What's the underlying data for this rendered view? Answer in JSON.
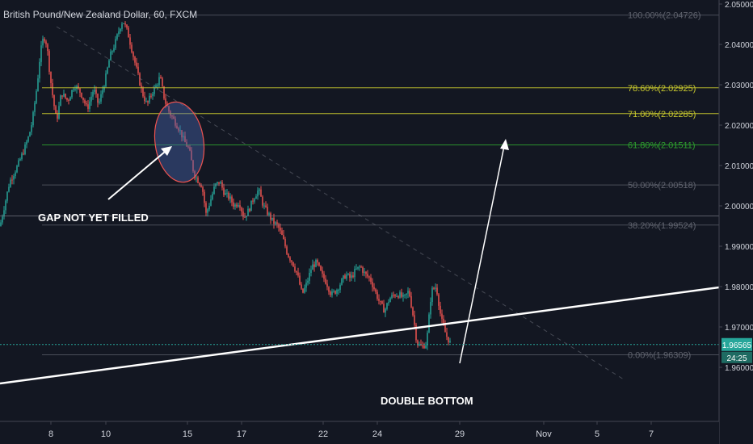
{
  "title": "British Pound/New Zealand Dollar, 60, FXCM",
  "colors": {
    "background": "#131722",
    "up": "#26a69a",
    "down": "#ef5350",
    "axis_text": "#d1d4dc",
    "fib_grey": "#787b86",
    "fib_yellow": "#c9c92e",
    "fib_green": "#2ea02e",
    "current_price": "#26a69a"
  },
  "chart_data": {
    "type": "candlestick",
    "price_axis": {
      "ylim": [
        1.959,
        2.0515
      ],
      "ticks": [
        "2.05000",
        "2.04000",
        "2.03000",
        "2.02000",
        "2.01000",
        "2.00000",
        "1.99000",
        "1.98000",
        "1.97000",
        "1.96000"
      ]
    },
    "time_axis": {
      "ticks": [
        "8",
        "10",
        "15",
        "17",
        "22",
        "24",
        "29",
        "Nov",
        "5",
        "7"
      ]
    },
    "fib_levels": [
      {
        "label": "100.00%(2.04726)",
        "value": 2.04726,
        "color": "grey"
      },
      {
        "label": "78.60%(2.02925)",
        "value": 2.02925,
        "color": "yellow"
      },
      {
        "label": "71.00%(2.02285)",
        "value": 2.02285,
        "color": "yellow"
      },
      {
        "label": "61.80%(2.01511)",
        "value": 2.01511,
        "color": "green"
      },
      {
        "label": "50.00%(2.00518)",
        "value": 2.00518,
        "color": "grey"
      },
      {
        "label": "38.20%(1.99524)",
        "value": 1.99524,
        "color": "grey"
      },
      {
        "label": "0.00%(1.96309)",
        "value": 1.96309,
        "color": "grey"
      }
    ],
    "current_price": "1.96565",
    "countdown": "24:25",
    "horizontal_line": 1.9975,
    "price_path": [
      [
        0,
        1.995
      ],
      [
        12,
        2.006
      ],
      [
        22,
        2.01
      ],
      [
        30,
        2.014
      ],
      [
        36,
        2.0175
      ],
      [
        40,
        2.021
      ],
      [
        46,
        2.03
      ],
      [
        50,
        2.038
      ],
      [
        54,
        2.042
      ],
      [
        58,
        2.04
      ],
      [
        62,
        2.032
      ],
      [
        66,
        2.026
      ],
      [
        70,
        2.021
      ],
      [
        76,
        2.028
      ],
      [
        84,
        2.026
      ],
      [
        92,
        2.03
      ],
      [
        100,
        2.028
      ],
      [
        108,
        2.024
      ],
      [
        116,
        2.029
      ],
      [
        122,
        2.025
      ],
      [
        130,
        2.031
      ],
      [
        136,
        2.037
      ],
      [
        142,
        2.04
      ],
      [
        148,
        2.044
      ],
      [
        152,
        2.046
      ],
      [
        158,
        2.043
      ],
      [
        164,
        2.038
      ],
      [
        170,
        2.033
      ],
      [
        176,
        2.028
      ],
      [
        182,
        2.025
      ],
      [
        188,
        2.028
      ],
      [
        194,
        2.03
      ],
      [
        198,
        2.032
      ],
      [
        204,
        2.026
      ],
      [
        210,
        2.023
      ],
      [
        216,
        2.021
      ],
      [
        222,
        2.019
      ],
      [
        228,
        2.016
      ],
      [
        234,
        2.014
      ],
      [
        240,
        2.008
      ],
      [
        246,
        2.006
      ],
      [
        250,
        2.005
      ],
      [
        255,
        1.998
      ],
      [
        260,
        2.001
      ],
      [
        266,
        2.005
      ],
      [
        272,
        2.006
      ],
      [
        278,
        2.003
      ],
      [
        284,
        2.002
      ],
      [
        290,
        2.0
      ],
      [
        296,
        2.001
      ],
      [
        302,
        1.997
      ],
      [
        308,
        1.999
      ],
      [
        314,
        2.002
      ],
      [
        320,
        2.004
      ],
      [
        326,
        2.0
      ],
      [
        332,
        1.998
      ],
      [
        338,
        1.996
      ],
      [
        344,
        1.995
      ],
      [
        350,
        1.992
      ],
      [
        356,
        1.988
      ],
      [
        362,
        1.986
      ],
      [
        368,
        1.983
      ],
      [
        374,
        1.978
      ],
      [
        380,
        1.981
      ],
      [
        386,
        1.985
      ],
      [
        392,
        1.986
      ],
      [
        398,
        1.983
      ],
      [
        404,
        1.981
      ],
      [
        410,
        1.978
      ],
      [
        416,
        1.979
      ],
      [
        422,
        1.981
      ],
      [
        428,
        1.983
      ],
      [
        434,
        1.982
      ],
      [
        440,
        1.984
      ],
      [
        446,
        1.985
      ],
      [
        452,
        1.983
      ],
      [
        458,
        1.982
      ],
      [
        464,
        1.979
      ],
      [
        470,
        1.976
      ],
      [
        476,
        1.974
      ],
      [
        482,
        1.977
      ],
      [
        488,
        1.978
      ],
      [
        494,
        1.978
      ],
      [
        500,
        1.977
      ],
      [
        506,
        1.979
      ],
      [
        512,
        1.972
      ],
      [
        516,
        1.966
      ],
      [
        522,
        1.965
      ],
      [
        528,
        1.966
      ],
      [
        534,
        1.979
      ],
      [
        540,
        1.98
      ],
      [
        546,
        1.972
      ],
      [
        552,
        1.968
      ],
      [
        558,
        1.9657
      ]
    ],
    "annotations": [
      {
        "text": "GAP NOT YET FILLED"
      },
      {
        "text": "DOUBLE BOTTOM"
      }
    ]
  }
}
